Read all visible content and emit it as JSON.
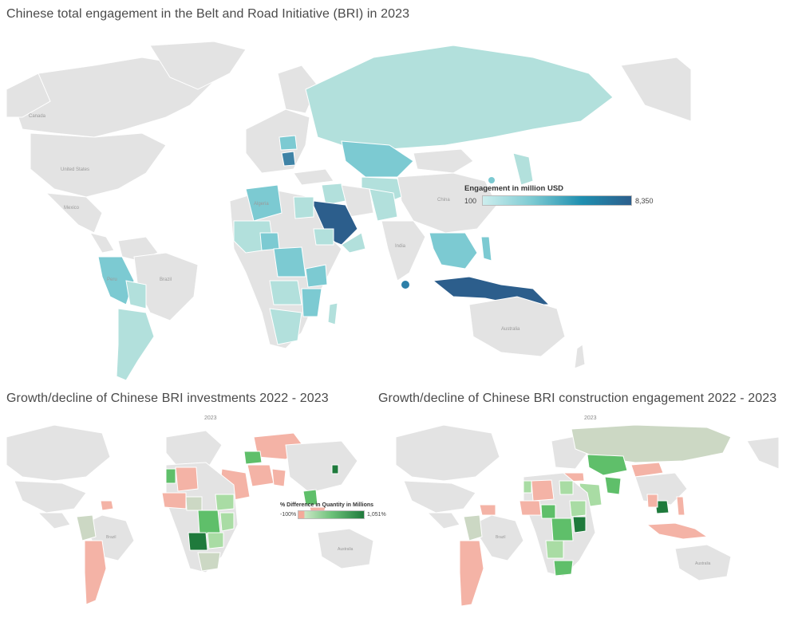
{
  "main_map": {
    "title": "Chinese total engagement in the Belt and Road Initiative (BRI) in 2023",
    "legend": {
      "title": "Engagement in million USD",
      "min": "100",
      "max": "8,350",
      "color_low": "#b2e0dc",
      "color_high": "#2c5e8c"
    },
    "basemap_labels": [
      "Canada",
      "United States",
      "Mexico",
      "Brazil",
      "Peru",
      "Algeria",
      "China",
      "India",
      "Australia"
    ]
  },
  "investments_map": {
    "title": "Growth/decline of Chinese BRI investments 2022 - 2023",
    "year": "2023",
    "legend": {
      "title": "% Difference in Quantity in Millions",
      "min": "-100%",
      "max": "1,051%",
      "color_low": "#f4a99a",
      "color_high": "#1f7a3c"
    },
    "basemap_labels": [
      "Brazil",
      "Australia"
    ]
  },
  "construction_map": {
    "title": "Growth/decline of Chinese BRI construction engagement 2022 - 2023",
    "year": "2023",
    "basemap_labels": [
      "Brazil",
      "Australia"
    ]
  },
  "colors": {
    "land": "#e3e3e3",
    "border": "#ffffff",
    "teal_light": "#b2e0dc",
    "teal_mid": "#7ccad2",
    "teal_dark": "#2c5e8c",
    "red_light": "#f4b3a6",
    "green_light": "#a9dca4",
    "green_mid": "#5fbf6a",
    "green_dark": "#1f7a3c",
    "green_grey": "#ccd8c4"
  }
}
